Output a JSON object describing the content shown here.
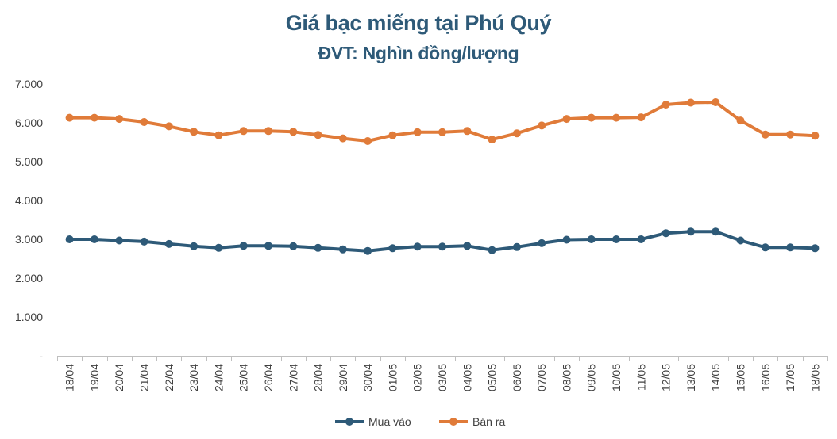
{
  "chart_data": {
    "type": "line",
    "title": "Giá bạc miếng tại Phú Quý",
    "subtitle": "ĐVT: Nghìn đồng/lượng",
    "categories": [
      "18/04",
      "19/04",
      "20/04",
      "21/04",
      "22/04",
      "23/04",
      "24/04",
      "25/04",
      "26/04",
      "27/04",
      "28/04",
      "29/04",
      "30/04",
      "01/05",
      "02/05",
      "03/05",
      "04/05",
      "05/05",
      "06/05",
      "07/05",
      "08/05",
      "09/05",
      "10/05",
      "11/05",
      "12/05",
      "13/05",
      "14/05",
      "15/05",
      "16/05",
      "17/05",
      "18/05"
    ],
    "yticks": [
      "-",
      "1.000",
      "2.000",
      "3.000",
      "4.000",
      "5.000",
      "6.000",
      "7.000"
    ],
    "ylim": [
      0,
      7000
    ],
    "grid": false,
    "legend_position": "bottom",
    "series": [
      {
        "name": "Mua vào",
        "color": "#2e5a78",
        "values": [
          3000,
          3000,
          2970,
          2940,
          2880,
          2820,
          2780,
          2830,
          2830,
          2820,
          2780,
          2740,
          2700,
          2770,
          2810,
          2810,
          2830,
          2720,
          2800,
          2900,
          2990,
          3000,
          3000,
          3000,
          3160,
          3200,
          3200,
          2970,
          2790,
          2790,
          2770
        ]
      },
      {
        "name": "Bán ra",
        "color": "#e07b39",
        "values": [
          6130,
          6130,
          6100,
          6020,
          5910,
          5770,
          5680,
          5790,
          5790,
          5770,
          5690,
          5600,
          5530,
          5680,
          5760,
          5760,
          5790,
          5570,
          5730,
          5930,
          6100,
          6130,
          6130,
          6140,
          6470,
          6520,
          6530,
          6060,
          5700,
          5700,
          5670
        ]
      }
    ]
  }
}
